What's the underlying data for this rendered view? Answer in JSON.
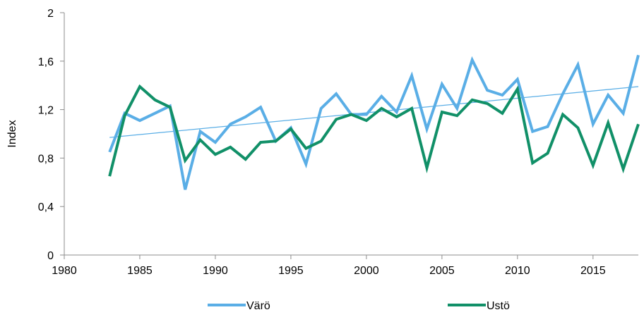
{
  "chart_data": {
    "type": "line",
    "title": "",
    "xlabel": "",
    "ylabel": "Index",
    "xlim": [
      1980,
      2018
    ],
    "ylim": [
      0,
      2
    ],
    "x_ticks": [
      1980,
      1985,
      1990,
      1995,
      2000,
      2005,
      2010,
      2015
    ],
    "y_ticks": [
      {
        "value": 0,
        "label": "0"
      },
      {
        "value": 0.4,
        "label": "0,4"
      },
      {
        "value": 0.8,
        "label": "0,8"
      },
      {
        "value": 1.2,
        "label": "1,2"
      },
      {
        "value": 1.6,
        "label": "1,6"
      },
      {
        "value": 2,
        "label": "2"
      }
    ],
    "grid": false,
    "legend_position": "bottom",
    "x": [
      1983,
      1984,
      1985,
      1986,
      1987,
      1988,
      1989,
      1990,
      1991,
      1992,
      1993,
      1994,
      1995,
      1996,
      1997,
      1998,
      1999,
      2000,
      2001,
      2002,
      2003,
      2004,
      2005,
      2006,
      2007,
      2008,
      2009,
      2010,
      2011,
      2012,
      2013,
      2014,
      2015,
      2016,
      2017,
      2018
    ],
    "series": [
      {
        "name": "Värö",
        "color": "#5aaee6",
        "values": [
          0.85,
          1.17,
          1.11,
          1.17,
          1.23,
          0.54,
          1.02,
          0.93,
          1.08,
          1.14,
          1.22,
          0.94,
          1.05,
          0.75,
          1.21,
          1.33,
          1.16,
          1.16,
          1.31,
          1.18,
          1.48,
          1.04,
          1.41,
          1.21,
          1.61,
          1.36,
          1.32,
          1.45,
          1.02,
          1.06,
          1.33,
          1.57,
          1.08,
          1.32,
          1.17,
          1.65
        ]
      },
      {
        "name": "Ustö",
        "color": "#119068",
        "values": [
          0.65,
          1.15,
          1.39,
          1.28,
          1.22,
          0.78,
          0.95,
          0.83,
          0.89,
          0.79,
          0.93,
          0.94,
          1.04,
          0.88,
          0.94,
          1.12,
          1.16,
          1.11,
          1.21,
          1.14,
          1.21,
          0.72,
          1.18,
          1.15,
          1.28,
          1.25,
          1.17,
          1.37,
          0.76,
          0.84,
          1.16,
          1.05,
          0.74,
          1.09,
          0.71,
          1.08
        ]
      }
    ],
    "trendline": {
      "series": "Värö",
      "color": "#5aaee6",
      "x": [
        1983,
        2018
      ],
      "values": [
        0.97,
        1.39
      ]
    }
  }
}
